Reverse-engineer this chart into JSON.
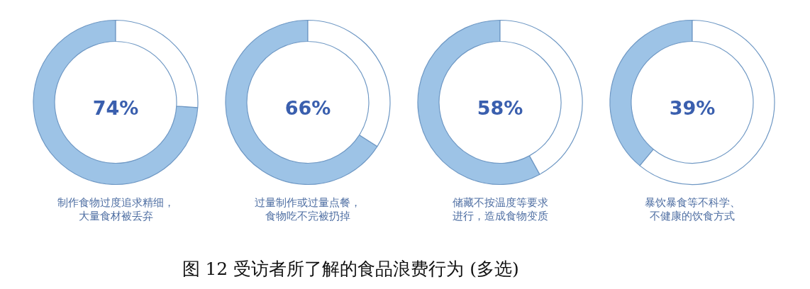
{
  "chart_data": [
    {
      "type": "donut",
      "title": "制作食物过度追求精细，大量食材被丢弃",
      "categories": [
        null,
        null
      ],
      "values": [
        74,
        26
      ],
      "colors": [
        "#9dc3e6",
        "#ffffff"
      ],
      "annotations": [
        "74%"
      ]
    },
    {
      "type": "donut",
      "title": "过量制作或过量点餐，食物吃不完被扔掉",
      "categories": [
        null,
        null
      ],
      "values": [
        66,
        34
      ],
      "colors": [
        "#9dc3e6",
        "#ffffff"
      ],
      "annotations": [
        "66%"
      ]
    },
    {
      "type": "donut",
      "title": "储藏不按温度等要求进行，造成食物变质",
      "categories": [
        null,
        null
      ],
      "values": [
        58,
        42
      ],
      "colors": [
        "#9dc3e6",
        "#ffffff"
      ],
      "annotations": [
        "58%"
      ]
    },
    {
      "type": "donut",
      "title": "暴饮暴食等不科学、不健康的饮食方式",
      "categories": [
        null,
        null
      ],
      "values": [
        39,
        61
      ],
      "colors": [
        "#9dc3e6",
        "#ffffff"
      ],
      "annotations": [
        "39%"
      ]
    },
    {
      "type": "other",
      "annotations": [
        "图 12 受访者所了解的食品浪费行为 (多选)"
      ]
    }
  ]
}
